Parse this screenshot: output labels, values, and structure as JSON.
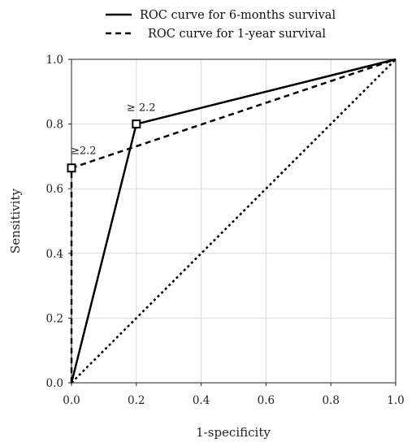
{
  "chart_data": {
    "type": "line",
    "xlabel": "1-specificity",
    "ylabel": "Sensitivity",
    "xlim": [
      0,
      1
    ],
    "ylim": [
      0,
      1
    ],
    "xticks": [
      "0.0",
      "0.2",
      "0.4",
      "0.6",
      "0.8",
      "1.0"
    ],
    "yticks": [
      "0.0",
      "0.2",
      "0.4",
      "0.6",
      "0.8",
      "1.0"
    ],
    "grid": true,
    "legend_position": "top-center",
    "series": [
      {
        "name": "ROC curve for 6-months survival",
        "style": "solid",
        "color": "#000000",
        "x": [
          0.0,
          0.2,
          1.0
        ],
        "y": [
          0.0,
          0.8,
          1.0
        ]
      },
      {
        "name": "ROC curve for 1-year survival",
        "style": "dashed",
        "color": "#000000",
        "x": [
          0.0,
          0.0,
          1.0
        ],
        "y": [
          0.0,
          0.664,
          1.0
        ]
      }
    ],
    "reference_line": {
      "style": "dotted",
      "x": [
        0.0,
        1.0
      ],
      "y": [
        0.0,
        1.0
      ]
    },
    "annotations": [
      {
        "text": "≥ 2.2",
        "x": 0.2,
        "y": 0.8
      },
      {
        "text": "≥2.2",
        "x": 0.0,
        "y": 0.664
      }
    ]
  }
}
